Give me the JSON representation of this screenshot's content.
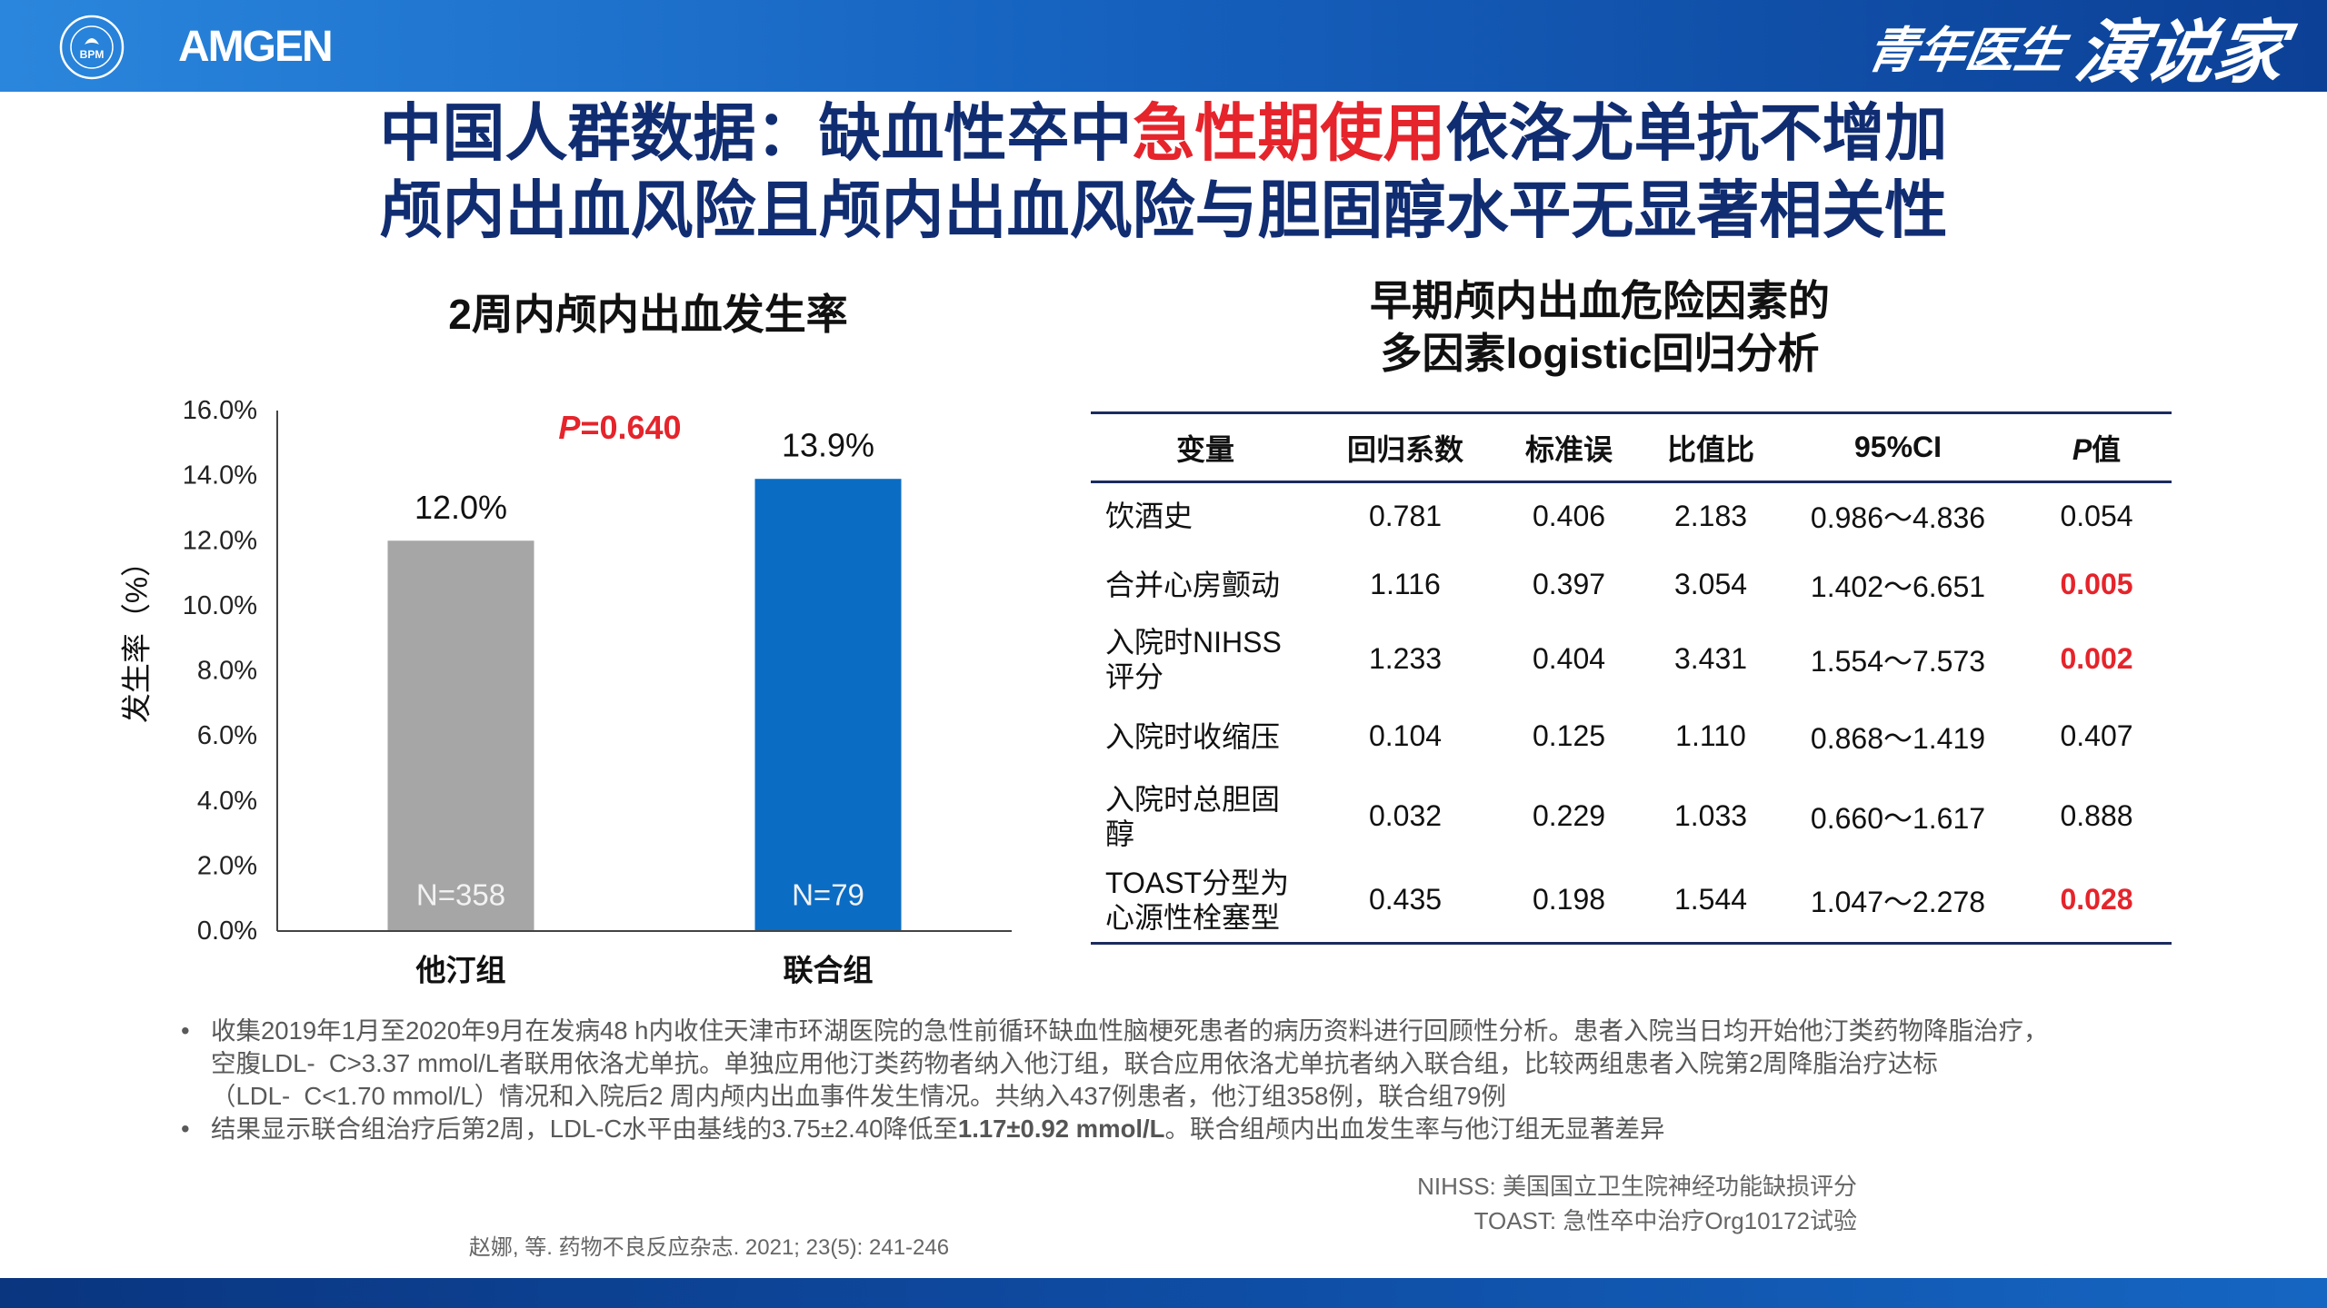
{
  "header": {
    "bpm_logo_text": "BPM",
    "amgen_logo_text": "AMGEN",
    "brand_small": "青年医生",
    "brand_large": "演说家"
  },
  "title": {
    "line1_before": "中国人群数据：缺血性卒中",
    "line1_highlight": "急性期使用",
    "line1_after": "依洛尤单抗不增加",
    "line2": "颅内出血风险且颅内出血风险与胆固醇水平无显著相关性"
  },
  "chart_data": {
    "type": "bar",
    "title": "2周内颅内出血发生率",
    "categories": [
      "他汀组",
      "联合组"
    ],
    "values": [
      12.0,
      13.9
    ],
    "value_labels": [
      "12.0%",
      "13.9%"
    ],
    "n_labels": [
      "N=358",
      "N=79"
    ],
    "colors": [
      "#a6a6a6",
      "#0b6cc4"
    ],
    "xlabel": "",
    "ylabel": "发生率（%）",
    "ylim": [
      0,
      16
    ],
    "yticks": [
      0,
      2,
      4,
      6,
      8,
      10,
      12,
      14,
      16
    ],
    "ytick_labels": [
      "0.0%",
      "2.0%",
      "4.0%",
      "6.0%",
      "8.0%",
      "10.0%",
      "12.0%",
      "14.0%",
      "16.0%"
    ],
    "annotation": {
      "italic": "P",
      "rest": "=0.640"
    },
    "grid": false,
    "legend": "none"
  },
  "table": {
    "title_line1": "早期颅内出血危险因素的",
    "title_line2": "多因素logistic回归分析",
    "headers": [
      "变量",
      "回归系数",
      "标准误",
      "比值比",
      "95%CI",
      {
        "italic": "P",
        "rest": "值"
      }
    ],
    "rows": [
      {
        "variable": [
          "饮酒史"
        ],
        "coef": "0.781",
        "se": "0.406",
        "or": "2.183",
        "ci": "0.986～4.836",
        "p": "0.054",
        "significant": false
      },
      {
        "variable": [
          "合并心房颤动"
        ],
        "coef": "1.116",
        "se": "0.397",
        "or": "3.054",
        "ci": "1.402～6.651",
        "p": "0.005",
        "significant": true
      },
      {
        "variable": [
          "入院时NIHSS",
          "评分"
        ],
        "coef": "1.233",
        "se": "0.404",
        "or": "3.431",
        "ci": "1.554～7.573",
        "p": "0.002",
        "significant": true
      },
      {
        "variable": [
          "入院时收缩压"
        ],
        "coef": "0.104",
        "se": "0.125",
        "or": "1.110",
        "ci": "0.868～1.419",
        "p": "0.407",
        "significant": false
      },
      {
        "variable": [
          "入院时总胆固",
          "醇"
        ],
        "coef": "0.032",
        "se": "0.229",
        "or": "1.033",
        "ci": "0.660～1.617",
        "p": "0.888",
        "significant": false
      },
      {
        "variable": [
          "TOAST分型为",
          "心源性栓塞型"
        ],
        "coef": "0.435",
        "se": "0.198",
        "or": "1.544",
        "ci": "1.047～2.278",
        "p": "0.028",
        "significant": true
      }
    ]
  },
  "notes": {
    "bullet": "•",
    "item1_lines": [
      "收集2019年1月至2020年9月在发病48 h内收住天津市环湖医院的急性前循环缺血性脑梗死患者的病历资料进行回顾性分析。患者入院当日均开始他汀类药物降脂治疗，",
      "空腹LDL-  C>3.37 mmol/L者联用依洛尤单抗。单独应用他汀类药物者纳入他汀组，联合应用依洛尤单抗者纳入联合组，比较两组患者入院第2周降脂治疗达标",
      "（LDL-  C<1.70 mmol/L）情况和入院后2 周内颅内出血事件发生情况。共纳入437例患者，他汀组358例，联合组79例"
    ],
    "item2": {
      "before": "结果显示联合组治疗后第2周，LDL-C水平由基线的3.75±2.40降低至",
      "bold": "1.17±0.92 mmol/L",
      "after": "。联合组颅内出血发生率与他汀组无显著差异"
    }
  },
  "abbreviations": [
    "NIHSS: 美国国立卫生院神经功能缺损评分",
    "TOAST: 急性卒中治疗Org10172试验"
  ],
  "reference": "赵娜, 等. 药物不良反应杂志. 2021; 23(5): 241-246",
  "colors": {
    "title": "#112d72",
    "highlight": "#e5242b",
    "header_bar": "#1663c0",
    "table_rule": "#1b2b5e"
  }
}
